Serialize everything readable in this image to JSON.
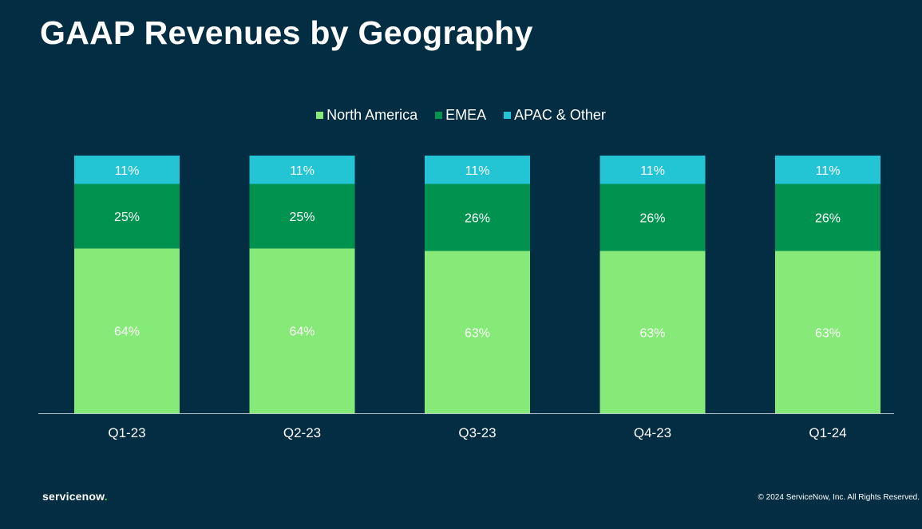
{
  "title": "GAAP Revenues by Geography",
  "footer": {
    "logo_text": "servicenow",
    "copyright": "© 2024 ServiceNow, Inc. All Rights Reserved."
  },
  "colors": {
    "background": "#032d42",
    "north_america": "#86ea78",
    "emea": "#00924f",
    "apac": "#23c4d3"
  },
  "chart_data": {
    "type": "bar",
    "stacked": true,
    "title": "GAAP Revenues by Geography",
    "xlabel": "",
    "ylabel": "",
    "ylim": [
      0,
      100
    ],
    "legend_position": "top-center",
    "categories": [
      "Q1-23",
      "Q2-23",
      "Q3-23",
      "Q4-23",
      "Q1-24"
    ],
    "series": [
      {
        "name": "North America",
        "color": "#86ea78",
        "values": [
          64,
          64,
          63,
          63,
          63
        ],
        "labels": [
          "64%",
          "64%",
          "63%",
          "63%",
          "63%"
        ]
      },
      {
        "name": "EMEA",
        "color": "#00924f",
        "values": [
          25,
          25,
          26,
          26,
          26
        ],
        "labels": [
          "25%",
          "25%",
          "26%",
          "26%",
          "26%"
        ]
      },
      {
        "name": "APAC & Other",
        "color": "#23c4d3",
        "values": [
          11,
          11,
          11,
          11,
          11
        ],
        "labels": [
          "11%",
          "11%",
          "11%",
          "11%",
          "11%"
        ]
      }
    ]
  }
}
